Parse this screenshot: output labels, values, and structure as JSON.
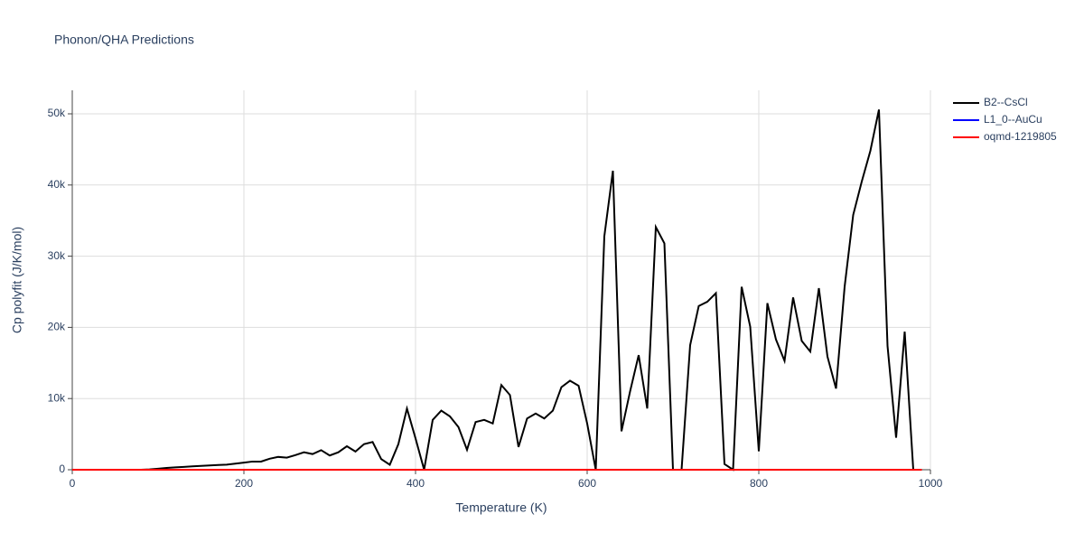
{
  "chart_data": {
    "type": "line",
    "title": "Phonon/QHA Predictions",
    "x_label": "Temperature (K)",
    "y_label": "Cp polyfit (J/K/mol)",
    "x": [
      0,
      10,
      20,
      30,
      40,
      50,
      60,
      70,
      80,
      90,
      100,
      110,
      120,
      130,
      140,
      150,
      160,
      170,
      180,
      190,
      200,
      210,
      220,
      230,
      240,
      250,
      260,
      270,
      280,
      290,
      300,
      310,
      320,
      330,
      340,
      350,
      360,
      370,
      380,
      390,
      400,
      410,
      420,
      430,
      440,
      450,
      460,
      470,
      480,
      490,
      500,
      510,
      520,
      530,
      540,
      550,
      560,
      570,
      580,
      590,
      600,
      610,
      620,
      630,
      640,
      650,
      660,
      670,
      680,
      690,
      700,
      710,
      720,
      730,
      740,
      750,
      760,
      770,
      780,
      790,
      800,
      810,
      820,
      830,
      840,
      850,
      860,
      870,
      880,
      890,
      900,
      910,
      920,
      930,
      940,
      950,
      960,
      970,
      980,
      990
    ],
    "series": [
      {
        "name": "B2--CsCl",
        "color": "#000000",
        "values": [
          0,
          0,
          0,
          0,
          0,
          0,
          0,
          0,
          0,
          50,
          150,
          250,
          330,
          400,
          480,
          540,
          600,
          660,
          720,
          850,
          1000,
          1150,
          1150,
          1550,
          1800,
          1700,
          2050,
          2450,
          2200,
          2750,
          2000,
          2450,
          3300,
          2550,
          3600,
          3900,
          1500,
          700,
          3600,
          8600,
          4400,
          0,
          7000,
          8300,
          7500,
          6000,
          2800,
          6700,
          7000,
          6500,
          11900,
          10500,
          3200,
          7200,
          7900,
          7200,
          8300,
          11600,
          12500,
          11800,
          6500,
          0,
          32800,
          42000,
          5400,
          11000,
          16100,
          8600,
          34100,
          31800,
          0,
          0,
          17500,
          23000,
          23600,
          24800,
          800,
          0,
          25700,
          20100,
          2600,
          23400,
          18300,
          15300,
          24200,
          18100,
          16600,
          25500,
          15900,
          11400,
          25700,
          35800,
          40500,
          44800,
          50600,
          17400,
          4500,
          19400,
          0,
          0
        ]
      },
      {
        "name": "L1_0--AuCu",
        "color": "#0000ff",
        "values": [
          0,
          0,
          0,
          0,
          0,
          0,
          0,
          0,
          0,
          0,
          0,
          0,
          0,
          0,
          0,
          0,
          0,
          0,
          0,
          0,
          0,
          0,
          0,
          0,
          0,
          0,
          0,
          0,
          0,
          0,
          0,
          0,
          0,
          0,
          0,
          0,
          0,
          0,
          0,
          0,
          0,
          0,
          0,
          0,
          0,
          0,
          0,
          0,
          0,
          0,
          0,
          0,
          0,
          0,
          0,
          0,
          0,
          0,
          0,
          0,
          0,
          0,
          0,
          0,
          0,
          0,
          0,
          0,
          0,
          0,
          0,
          0,
          0,
          0,
          0,
          0,
          0,
          0,
          0,
          0,
          0,
          0,
          0,
          0,
          0,
          0,
          0,
          0,
          0,
          0,
          0,
          0,
          0,
          0,
          0,
          0,
          0,
          0,
          0,
          0
        ]
      },
      {
        "name": "oqmd-1219805",
        "color": "#ff0000",
        "values": [
          0,
          0,
          0,
          0,
          0,
          0,
          0,
          0,
          0,
          0,
          0,
          0,
          0,
          0,
          0,
          0,
          0,
          0,
          0,
          0,
          0,
          0,
          0,
          0,
          0,
          0,
          0,
          0,
          0,
          0,
          0,
          0,
          0,
          0,
          0,
          0,
          0,
          0,
          0,
          0,
          0,
          0,
          0,
          0,
          0,
          0,
          0,
          0,
          0,
          0,
          0,
          0,
          0,
          0,
          0,
          0,
          0,
          0,
          0,
          0,
          0,
          0,
          0,
          0,
          0,
          0,
          0,
          0,
          0,
          0,
          0,
          0,
          0,
          0,
          0,
          0,
          0,
          0,
          0,
          0,
          0,
          0,
          0,
          0,
          0,
          0,
          0,
          0,
          0,
          0,
          0,
          0,
          0,
          0,
          0,
          0,
          0,
          0,
          0,
          0
        ]
      }
    ],
    "xlim": [
      0,
      1000
    ],
    "xticks": [
      0,
      200,
      400,
      600,
      800,
      1000
    ],
    "ylim": [
      0,
      53300
    ],
    "yticks": [
      0,
      {
        "value": 10000,
        "label": "10k"
      },
      {
        "value": 20000,
        "label": "20k"
      },
      {
        "value": 30000,
        "label": "30k"
      },
      {
        "value": 40000,
        "label": "40k"
      },
      {
        "value": 50000,
        "label": "50k"
      }
    ],
    "grid": true,
    "legend": "right"
  }
}
